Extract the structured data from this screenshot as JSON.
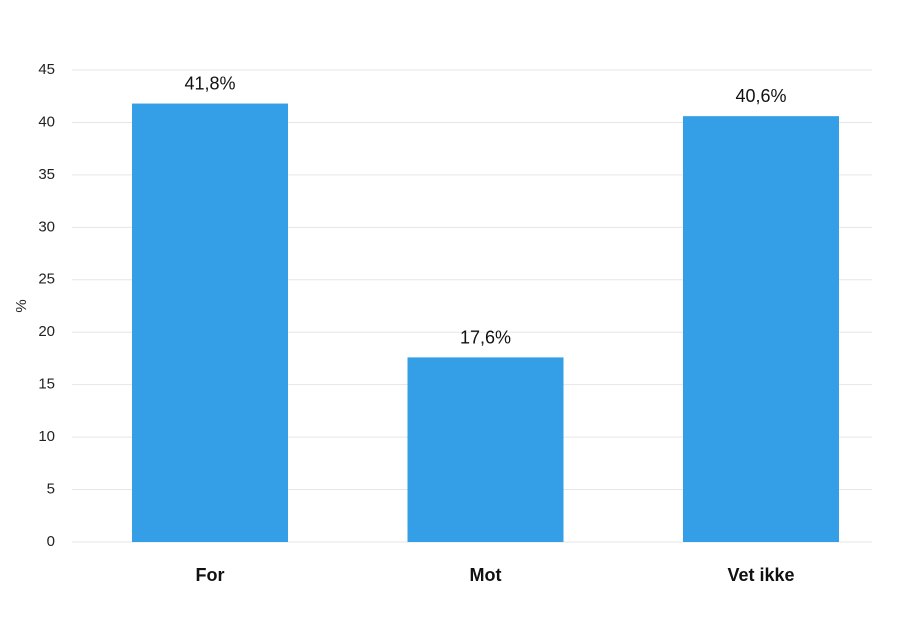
{
  "chart_data": {
    "type": "bar",
    "categories": [
      "For",
      "Mot",
      "Vet ikke"
    ],
    "values": [
      41.8,
      17.6,
      40.6
    ],
    "data_labels": [
      "41,8%",
      "17,6%",
      "40,6%"
    ],
    "ylabel": "%",
    "xlabel": "",
    "ylim": [
      0,
      45
    ],
    "yticks": [
      0,
      5,
      10,
      15,
      20,
      25,
      30,
      35,
      40,
      45
    ],
    "grid": true,
    "bar_color": "#349fe6"
  }
}
